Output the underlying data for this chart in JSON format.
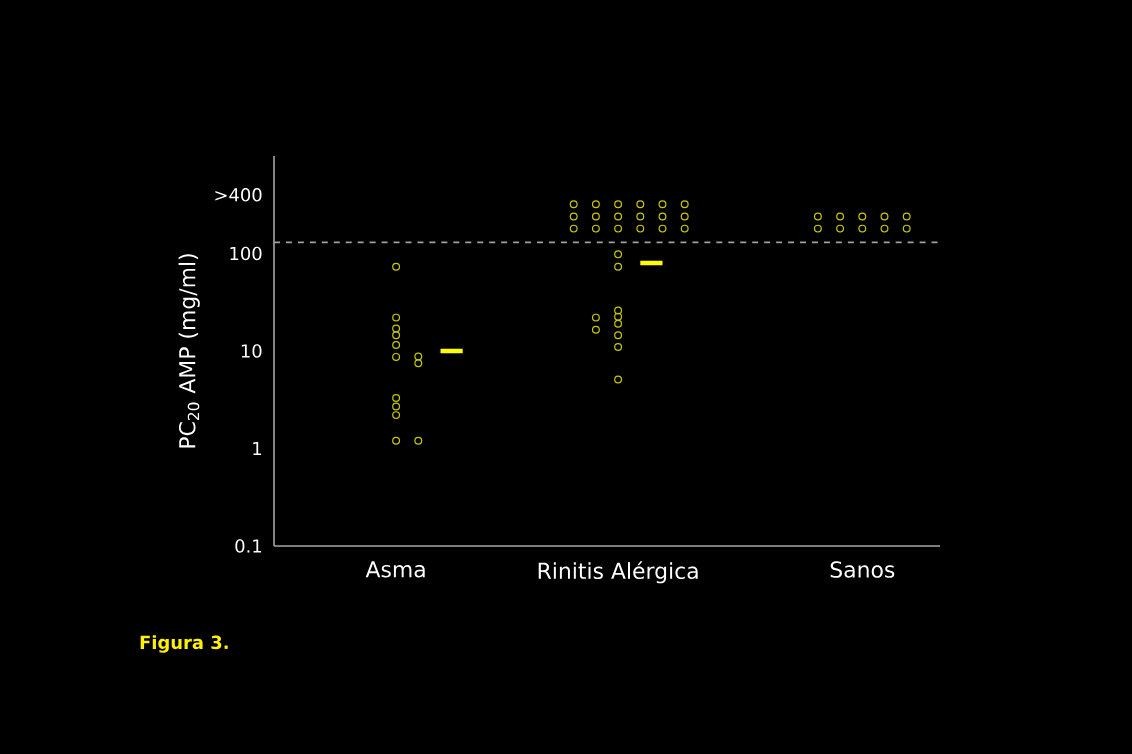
{
  "chart_data": {
    "type": "scatter",
    "ylabel": "PC$_{20}$ AMP (mg/ml)",
    "log": "y",
    "categories": [
      null,
      null,
      null,
      null,
      null,
      "Asma",
      null,
      null,
      null,
      null,
      null,
      null,
      null,
      null,
      null,
      "Rinitis Alérgica",
      null,
      null,
      null,
      null,
      null,
      null,
      null,
      null,
      null,
      null,
      "Sanos",
      null,
      null,
      null
    ],
    "ylim": [
      0.1,
      1000
    ],
    "yticks": [
      0.1,
      1,
      10,
      100,
      {
        "value": 400,
        "label": ">400"
      }
    ],
    "ref_lines": [
      {
        "axis": "y",
        "value": 130,
        "color": "#a0a0a0",
        "line_style": "dashed"
      }
    ],
    "annotations": [
      "**Figura 3.**"
    ],
    "series": [
      {
        "marker": "circle",
        "color": "#c8c800",
        "values": [
          null,
          null,
          null,
          null,
          null,
          73,
          8.8,
          null,
          null,
          null,
          null,
          null,
          null,
          320,
          320,
          320,
          320,
          320,
          320,
          null,
          null,
          null,
          null,
          null,
          240,
          240,
          240,
          240,
          240,
          null
        ]
      },
      {
        "marker": "circle",
        "color": "#c8c800",
        "values": [
          null,
          null,
          null,
          null,
          null,
          22,
          7.5,
          null,
          null,
          null,
          null,
          null,
          null,
          240,
          240,
          240,
          240,
          240,
          240,
          null,
          null,
          null,
          null,
          null,
          180,
          180,
          180,
          180,
          180,
          null
        ]
      },
      {
        "marker": "circle",
        "color": "#c8c800",
        "values": [
          null,
          null,
          null,
          null,
          null,
          17,
          1.2,
          null,
          null,
          null,
          null,
          null,
          null,
          180,
          180,
          180,
          180,
          180,
          180,
          null,
          null,
          null,
          null,
          null,
          null,
          null,
          null,
          null,
          null,
          null
        ]
      },
      {
        "marker": "circle",
        "color": "#c8c800",
        "values": [
          null,
          null,
          null,
          null,
          null,
          14.5,
          null,
          null,
          null,
          null,
          null,
          null,
          null,
          null,
          22,
          98,
          null,
          null,
          null,
          null,
          null,
          null,
          null,
          null,
          null,
          null,
          null,
          null,
          null,
          null
        ]
      },
      {
        "marker": "circle",
        "color": "#c8c800",
        "values": [
          null,
          null,
          null,
          null,
          null,
          11.5,
          null,
          null,
          null,
          null,
          null,
          null,
          null,
          null,
          16.5,
          73,
          null,
          null,
          null,
          null,
          null,
          null,
          null,
          null,
          null,
          null,
          null,
          null,
          null,
          null
        ]
      },
      {
        "marker": "circle",
        "color": "#c8c800",
        "values": [
          null,
          null,
          null,
          null,
          null,
          8.7,
          null,
          null,
          null,
          null,
          null,
          null,
          null,
          null,
          null,
          26,
          null,
          null,
          null,
          null,
          null,
          null,
          null,
          null,
          null,
          null,
          null,
          null,
          null,
          null
        ]
      },
      {
        "marker": "circle",
        "color": "#c8c800",
        "values": [
          null,
          null,
          null,
          null,
          null,
          3.3,
          null,
          null,
          null,
          null,
          null,
          null,
          null,
          null,
          null,
          22.5,
          null,
          null,
          null,
          null,
          null,
          null,
          null,
          null,
          null,
          null,
          null,
          null,
          null,
          null
        ]
      },
      {
        "marker": "circle",
        "color": "#c8c800",
        "values": [
          null,
          null,
          null,
          null,
          null,
          2.7,
          null,
          null,
          null,
          null,
          null,
          null,
          null,
          null,
          null,
          19,
          null,
          null,
          null,
          null,
          null,
          null,
          null,
          null,
          null,
          null,
          null,
          null,
          null,
          null
        ]
      },
      {
        "marker": "circle",
        "color": "#c8c800",
        "values": [
          null,
          null,
          null,
          null,
          null,
          2.2,
          null,
          null,
          null,
          null,
          null,
          null,
          null,
          null,
          null,
          14.5,
          null,
          null,
          null,
          null,
          null,
          null,
          null,
          null,
          null,
          null,
          null,
          null,
          null,
          null
        ]
      },
      {
        "marker": "circle",
        "color": "#c8c800",
        "values": [
          null,
          null,
          null,
          null,
          null,
          1.2,
          null,
          null,
          null,
          null,
          null,
          null,
          null,
          null,
          null,
          11,
          null,
          null,
          null,
          null,
          null,
          null,
          null,
          null,
          null,
          null,
          null,
          null,
          null,
          null
        ]
      },
      {
        "marker": "circle",
        "color": "#c8c800",
        "values": [
          null,
          null,
          null,
          null,
          null,
          null,
          null,
          null,
          null,
          null,
          null,
          null,
          null,
          null,
          null,
          5.1,
          null,
          null,
          null,
          null,
          null,
          null,
          null,
          null,
          null,
          null,
          null,
          null,
          null,
          null
        ]
      },
      {
        "type": "line",
        "marker": "none",
        "color": "#ffff00",
        "values": [
          null,
          null,
          null,
          null,
          null,
          null,
          null,
          10,
          10,
          null,
          null,
          null,
          null,
          null,
          null,
          null,
          80,
          80,
          null,
          null,
          null,
          null,
          null,
          null,
          null,
          null,
          null,
          null,
          null,
          null
        ]
      }
    ]
  }
}
